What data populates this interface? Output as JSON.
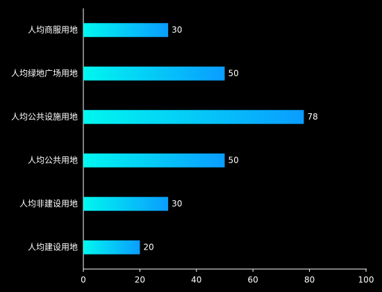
{
  "chart_data": {
    "type": "hbar",
    "categories": [
      "人均商服用地",
      "人均绿地广场用地",
      "人均公共设施用地",
      "人均公共用地",
      "人均非建设用地",
      "人均建设用地"
    ],
    "values": [
      30,
      50,
      78,
      50,
      30,
      20
    ],
    "color": [
      "#00f7ef",
      "#0a9dff"
    ],
    "xlim": [
      0,
      100
    ],
    "xticks": [
      0,
      20,
      40,
      60,
      80,
      100
    ],
    "grid": false
  }
}
